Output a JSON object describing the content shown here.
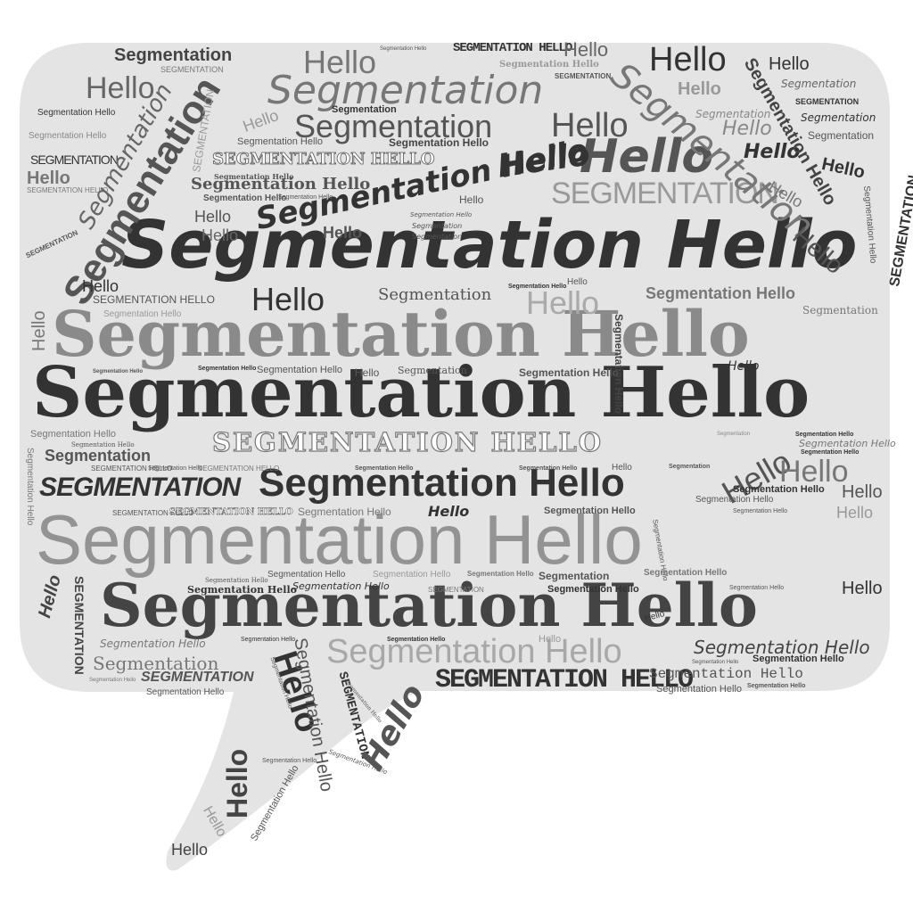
{
  "words": {
    "hello": "Hello",
    "segmentation": "Segmentation",
    "segmentation_hello": "Segmentation Hello",
    "segmentation_upper": "SEGMENTATION",
    "segmentation_hello_upper": "SEGMENTATION HELLO"
  },
  "colors": {
    "bubble": "#e4e4e4",
    "dark": "#333333",
    "mid": "#555555",
    "gray": "#7a7a7a",
    "light": "#9c9c9c"
  }
}
